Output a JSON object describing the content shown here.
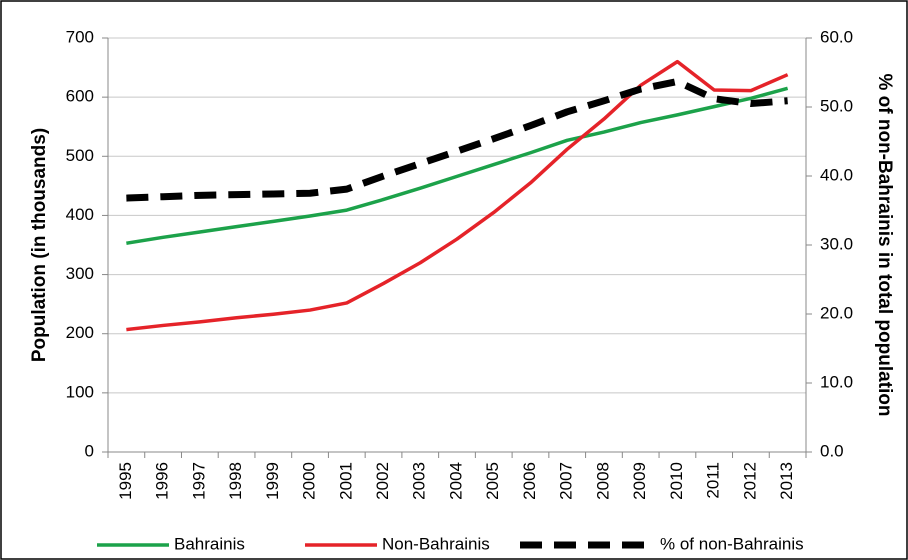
{
  "chart_data": {
    "type": "line",
    "ylabel": "Population (in thousands)",
    "y2label": "% of non-Bahrainis in total population",
    "categories": [
      "1995",
      "1996",
      "1997",
      "1998",
      "1999",
      "2000",
      "2001",
      "2002",
      "2003",
      "2004",
      "2005",
      "2006",
      "2007",
      "2008",
      "2009",
      "2010",
      "2011",
      "2012",
      "2013"
    ],
    "series": [
      {
        "name": "Bahrainis",
        "color": "#1ca24a",
        "values": [
          353,
          363,
          372,
          381,
          390,
          399,
          409,
          427,
          446,
          466,
          486,
          506,
          527,
          541,
          557,
          570,
          584,
          598,
          615
        ]
      },
      {
        "name": "Non-Bahrainis",
        "color": "#e52329",
        "values": [
          207,
          214,
          220,
          227,
          233,
          240,
          252,
          285,
          320,
          360,
          405,
          455,
          512,
          563,
          620,
          660,
          612,
          611,
          638
        ]
      },
      {
        "name": "% of non-Bahrainis",
        "color": "#000000",
        "dashed": true,
        "axis": "y2",
        "values": [
          36.8,
          37.0,
          37.2,
          37.3,
          37.4,
          37.5,
          38.1,
          40.0,
          41.8,
          43.6,
          45.4,
          47.3,
          49.3,
          50.9,
          52.6,
          53.7,
          51.2,
          50.5,
          50.9
        ]
      }
    ],
    "ylim": [
      0,
      700
    ],
    "yticks": [
      0,
      100,
      200,
      300,
      400,
      500,
      600,
      700
    ],
    "y2lim": [
      0,
      60
    ],
    "y2ticks": [
      {
        "value": 0,
        "label": "0.0"
      },
      {
        "value": 10,
        "label": "10.0"
      },
      {
        "value": 20,
        "label": "20.0"
      },
      {
        "value": 30,
        "label": "30.0"
      },
      {
        "value": 40,
        "label": "40.0"
      },
      {
        "value": 50,
        "label": "50.0"
      },
      {
        "value": 60,
        "label": "60.0"
      }
    ],
    "grid": true,
    "legend": "bottom"
  }
}
